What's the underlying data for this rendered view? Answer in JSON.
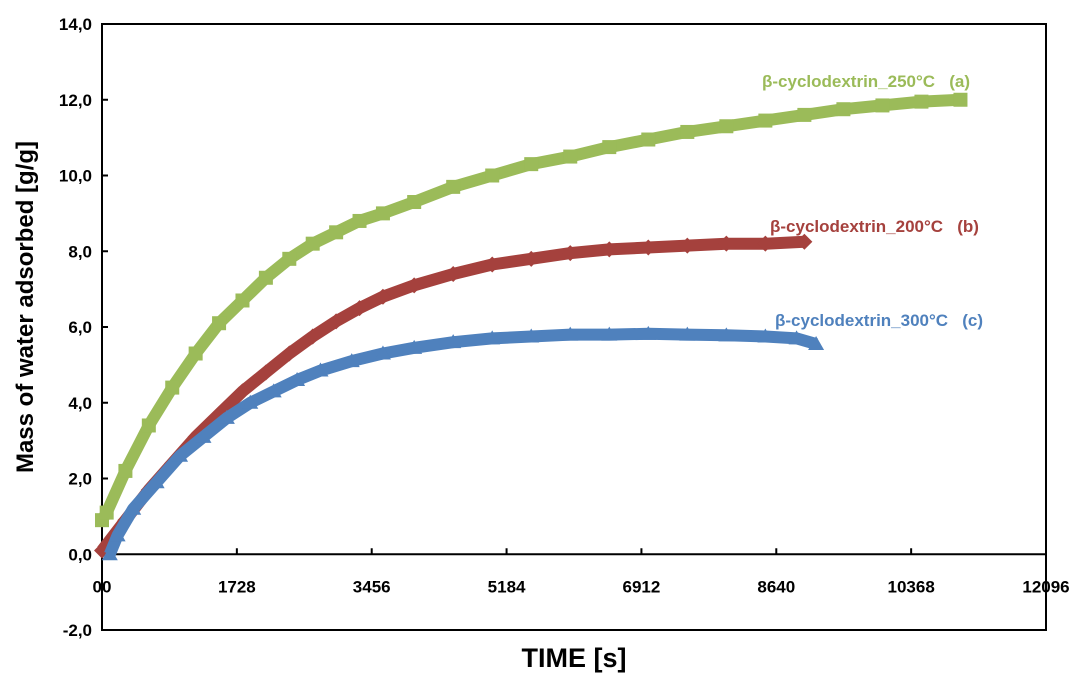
{
  "chart_data": {
    "type": "line",
    "title": "",
    "xlabel": "TIME [s]",
    "ylabel": "Mass of water adsorbed [g/g]",
    "xlim": [
      0,
      12096
    ],
    "ylim": [
      -2,
      14
    ],
    "x_ticks": [
      0,
      1728,
      3456,
      5184,
      6912,
      8640,
      10368,
      12096
    ],
    "x_tick_labels": [
      "00",
      "1728",
      "3456",
      "5184",
      "6912",
      "8640",
      "10368",
      "12096"
    ],
    "y_ticks": [
      -2,
      0,
      2,
      4,
      6,
      8,
      10,
      12,
      14
    ],
    "y_tick_labels": [
      "-2,0",
      "0,0",
      "2,0",
      "4,0",
      "6,0",
      "8,0",
      "10,0",
      "12,0",
      "14,0"
    ],
    "grid": false,
    "legend": "none",
    "series": [
      {
        "name": "β-cyclodextrin_250°C   (a)",
        "color": "#9BBB59",
        "marker": "square",
        "x": [
          0,
          60,
          300,
          600,
          900,
          1200,
          1500,
          1800,
          2100,
          2400,
          2700,
          3000,
          3300,
          3600,
          4000,
          4500,
          5000,
          5500,
          6000,
          6500,
          7000,
          7500,
          8000,
          8500,
          9000,
          9500,
          10000,
          10500,
          11000
        ],
        "y": [
          0.9,
          1.1,
          2.2,
          3.4,
          4.4,
          5.3,
          6.1,
          6.7,
          7.3,
          7.8,
          8.2,
          8.5,
          8.8,
          9.0,
          9.3,
          9.7,
          10.0,
          10.3,
          10.5,
          10.75,
          10.95,
          11.15,
          11.3,
          11.45,
          11.6,
          11.75,
          11.85,
          11.95,
          12.0
        ]
      },
      {
        "name": "β-cyclodextrin_200°C   (b)",
        "color": "#A5413D",
        "marker": "diamond",
        "x": [
          0,
          300,
          600,
          900,
          1200,
          1500,
          1800,
          2100,
          2400,
          2700,
          3000,
          3300,
          3600,
          4000,
          4500,
          5000,
          5500,
          6000,
          6500,
          7000,
          7500,
          8000,
          8500,
          9000
        ],
        "y": [
          0.1,
          0.9,
          1.7,
          2.4,
          3.1,
          3.7,
          4.3,
          4.8,
          5.3,
          5.75,
          6.15,
          6.5,
          6.8,
          7.1,
          7.4,
          7.65,
          7.8,
          7.95,
          8.05,
          8.1,
          8.15,
          8.2,
          8.2,
          8.25
        ]
      },
      {
        "name": "β-cyclodextrin_300°C   (c)",
        "color": "#4F81BD",
        "marker": "triangle",
        "x": [
          100,
          200,
          400,
          700,
          1000,
          1300,
          1600,
          1900,
          2200,
          2500,
          2800,
          3200,
          3600,
          4000,
          4500,
          5000,
          5500,
          6000,
          6500,
          7000,
          7500,
          8000,
          8500,
          8900,
          9150
        ],
        "y": [
          0.0,
          0.5,
          1.2,
          1.9,
          2.6,
          3.1,
          3.6,
          4.0,
          4.3,
          4.6,
          4.85,
          5.1,
          5.3,
          5.45,
          5.6,
          5.7,
          5.75,
          5.8,
          5.8,
          5.82,
          5.8,
          5.78,
          5.75,
          5.7,
          5.55
        ]
      }
    ]
  }
}
